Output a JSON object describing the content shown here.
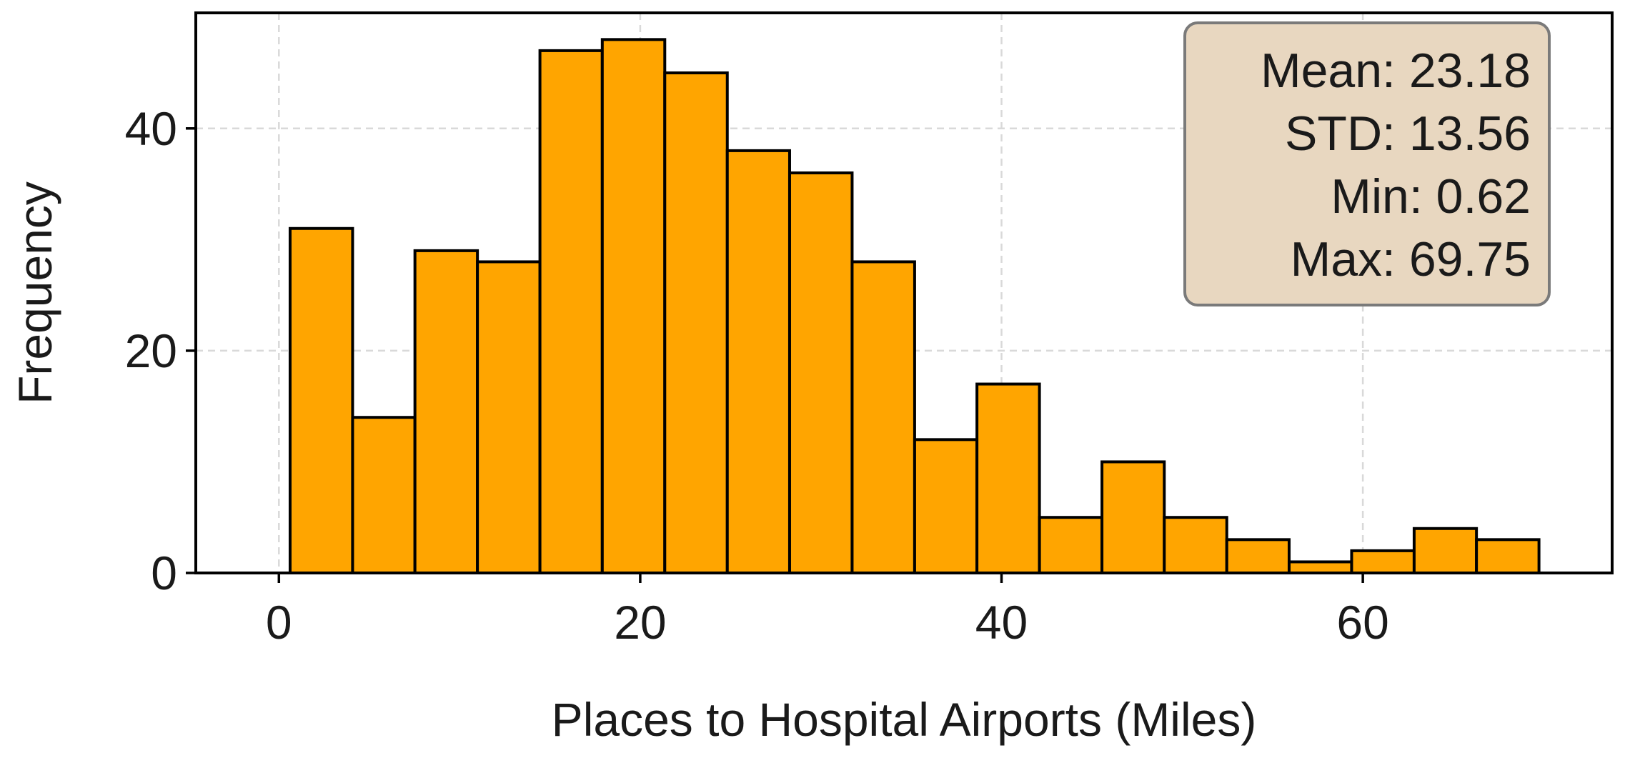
{
  "chart_data": {
    "type": "bar",
    "title": "",
    "xlabel": "Places to Hospital Airports (Miles)",
    "ylabel": "Frequency",
    "xlim": [
      -4.6,
      73.8
    ],
    "ylim": [
      0,
      50.4
    ],
    "x_ticks": [
      0,
      20,
      40,
      60
    ],
    "x_tick_labels": [
      "0",
      "20",
      "40",
      "60"
    ],
    "y_ticks": [
      0,
      20,
      40
    ],
    "y_tick_labels": [
      "0",
      "20",
      "40"
    ],
    "grid": true,
    "bin_edges": [
      0.62,
      4.08,
      7.53,
      10.99,
      14.45,
      17.9,
      21.36,
      24.82,
      28.27,
      31.73,
      35.19,
      38.64,
      42.1,
      45.56,
      49.01,
      52.47,
      55.92,
      59.38,
      62.84,
      66.29,
      69.75
    ],
    "values": [
      31,
      14,
      29,
      28,
      47,
      48,
      45,
      38,
      36,
      28,
      12,
      17,
      5,
      10,
      5,
      3,
      1,
      2,
      4,
      3
    ],
    "bar_color": "#FFA500",
    "edge_color": "#000000",
    "stats_box": {
      "lines": [
        "Mean: 23.18",
        "STD: 13.56",
        "Min: 0.62",
        "Max: 69.75"
      ],
      "placement": "top-right",
      "background": "#E8D7C0",
      "border": "#7a7a7a"
    }
  }
}
